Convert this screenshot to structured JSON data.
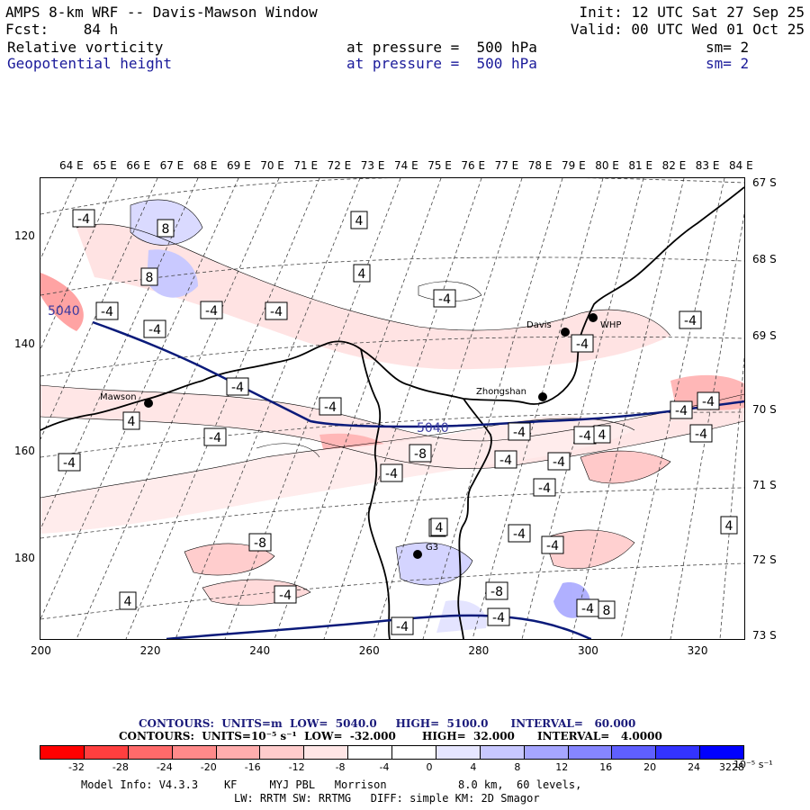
{
  "header": {
    "title_left": "AMPS 8-km WRF -- Davis-Mawson Window",
    "forecast_left": "Fcst:    84 h",
    "init": "Init: 12 UTC Sat 27 Sep 25",
    "valid": "Valid: 00 UTC Wed 01 Oct 25",
    "field1_name": "Relative vorticity",
    "field1_level": "at pressure =  500 hPa",
    "field1_sm": "sm= 2",
    "field2_name": "Geopotential height",
    "field2_level": "at pressure =  500 hPa",
    "field2_sm": "sm= 2"
  },
  "colors": {
    "geopotential_contour": "#0a1a7a",
    "coast": "#000000",
    "grid": "#444444",
    "colorbar": [
      "#ff0000",
      "#ff3f3f",
      "#ff6a6a",
      "#ff8a8a",
      "#ffadad",
      "#ffcccc",
      "#ffe6e6",
      "#ffffff",
      "#ffffff",
      "#e6e6ff",
      "#c8c8ff",
      "#a6a6ff",
      "#8686ff",
      "#5f5fff",
      "#3333ff",
      "#0000ff"
    ]
  },
  "map": {
    "lon_labels": [
      "64 E",
      "65 E",
      "66 E",
      "67 E",
      "68 E",
      "69 E",
      "70 E",
      "71 E",
      "72 E",
      "73 E",
      "74 E",
      "75 E",
      "76 E",
      "77 E",
      "78 E",
      "79 E",
      "80 E",
      "81 E",
      "82 E",
      "83 E",
      "84 E"
    ],
    "lat_labels": [
      "67 S",
      "68 S",
      "69 S",
      "70 S",
      "71 S",
      "72 S",
      "73 S"
    ],
    "x_labels": [
      "200",
      "220",
      "240",
      "260",
      "280",
      "300",
      "320"
    ],
    "y_labels": [
      "120",
      "140",
      "160",
      "180"
    ],
    "stations": [
      {
        "name": "Davis"
      },
      {
        "name": "WHP"
      },
      {
        "name": "Mawson"
      },
      {
        "name": "Zhongshan"
      },
      {
        "name": "G3"
      }
    ],
    "height_labels": [
      "5040",
      "5040"
    ],
    "vort_labels": [
      "-4",
      "8",
      "8",
      "-4",
      "-4",
      "-4",
      "-4",
      "4",
      "4",
      "-4",
      "4",
      "-4",
      "-4",
      "-4",
      "-4",
      "-4",
      "-4",
      "-4",
      "-8",
      "-4",
      "-4",
      "-4",
      "-8",
      "-4",
      "-4",
      "-8",
      "-4",
      "-4",
      "-4",
      "4",
      "-4",
      "8",
      "-4",
      "4",
      "-4",
      "8",
      "-4",
      "4",
      "-4",
      "4",
      "-4"
    ]
  },
  "footer": {
    "contours1": "CONTOURS:  UNITS=m  LOW=  5040.0     HIGH=  5100.0      INTERVAL=   60.000",
    "contours2": "CONTOURS:  UNITS=10⁻⁵ s⁻¹  LOW=  -32.000       HIGH=  32.000      INTERVAL=   4.0000",
    "colorbar_labels": [
      "-32",
      "-28",
      "-24",
      "-20",
      "-16",
      "-12",
      "-8",
      "-4",
      "0",
      "4",
      "8",
      "12",
      "16",
      "20",
      "24",
      "28",
      "32"
    ],
    "colorbar_unit": "10⁻⁵ s⁻¹",
    "model_info1": "Model Info: V4.3.3    KF     MYJ PBL   Morrison           8.0 km,  60 levels,",
    "model_info2": "LW: RRTM SW: RRTMG   DIFF: simple KM: 2D Smagor"
  }
}
